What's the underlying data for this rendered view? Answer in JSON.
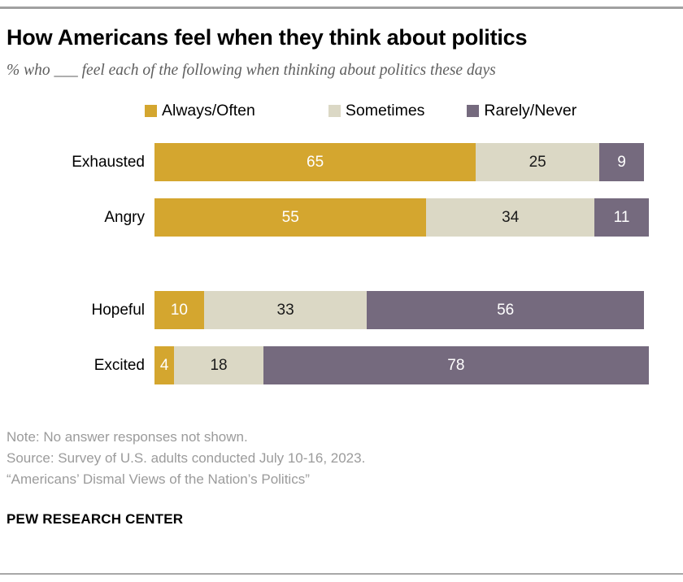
{
  "header": {
    "title": "How Americans feel when they think about politics",
    "subtitle": "% who ___ feel each of the following when thinking about politics these days"
  },
  "chart_data": {
    "type": "bar",
    "orientation": "horizontal",
    "stacked": true,
    "unit": "percent",
    "xlim": [
      0,
      100
    ],
    "grid": false,
    "legend_position": "top",
    "value_labels_shown": true,
    "categories": [
      "Exhausted",
      "Angry",
      "Hopeful",
      "Excited"
    ],
    "group_start_indices": [
      2
    ],
    "series": [
      {
        "name": "Always/Often",
        "color": "#d4a62f",
        "label_color": "#ffffff",
        "values": [
          65,
          55,
          10,
          4
        ]
      },
      {
        "name": "Sometimes",
        "color": "#dbd8c5",
        "label_color": "#1a1a1a",
        "values": [
          25,
          34,
          33,
          18
        ]
      },
      {
        "name": "Rarely/Never",
        "color": "#756a7e",
        "label_color": "#ffffff",
        "values": [
          9,
          11,
          56,
          78
        ]
      }
    ]
  },
  "footer": {
    "note": "Note: No answer responses not shown.",
    "source": "Source: Survey of U.S. adults conducted July 10-16, 2023.",
    "report": "“Americans’ Dismal Views of the Nation’s Politics”",
    "brand": "PEW RESEARCH CENTER"
  }
}
